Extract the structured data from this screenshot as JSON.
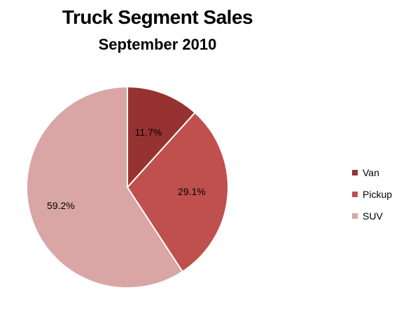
{
  "chart_data": {
    "type": "pie",
    "title": "Truck Segment Sales",
    "subtitle": "September 2010",
    "categories": [
      "Van",
      "Pickup",
      "SUV"
    ],
    "values": [
      11.7,
      29.1,
      59.2
    ],
    "labels": [
      "11.7%",
      "29.1%",
      "59.2%"
    ],
    "colors": [
      "#963330",
      "#c0504d",
      "#d9a6a5"
    ],
    "legend_position": "right",
    "start_angle": "12 o'clock",
    "direction": "clockwise"
  }
}
